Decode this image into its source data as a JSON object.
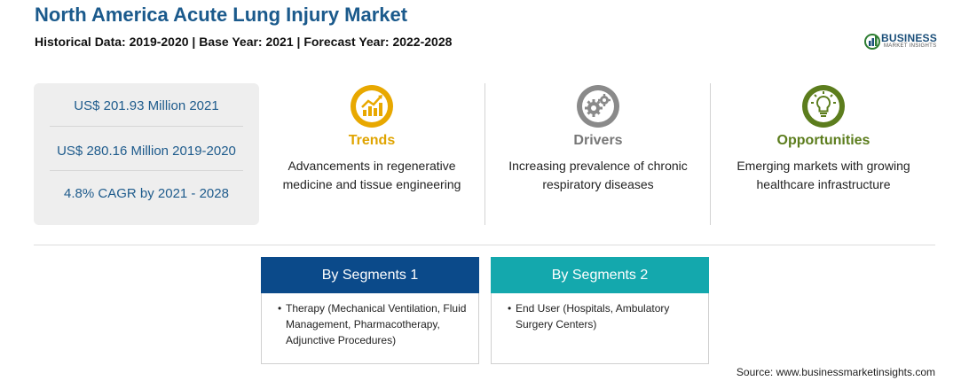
{
  "header": {
    "title": "North America Acute Lung Injury Market",
    "subtitle": "Historical Data: 2019-2020 | Base Year: 2021 | Forecast Year: 2022-2028"
  },
  "logo": {
    "word": "BUSINESS",
    "sub": "MARKET INSIGHTS"
  },
  "stats": [
    "US$ 201.93 Million 2021",
    "US$ 280.16 Million 2019-2020",
    "4.8% CAGR by 2021 - 2028"
  ],
  "columns": {
    "trends": {
      "heading": "Trends",
      "text": "Advancements in regenerative medicine and tissue engineering",
      "color": "#e0a400",
      "icon": "growth-chart-icon"
    },
    "drivers": {
      "heading": "Drivers",
      "text": "Increasing prevalence of chronic respiratory diseases",
      "color": "#777777",
      "icon": "gears-icon"
    },
    "opportunities": {
      "heading": "Opportunities",
      "text": "Emerging markets with growing healthcare infrastructure",
      "color": "#5c7d1d",
      "icon": "lightbulb-icon"
    }
  },
  "segments": [
    {
      "title": "By Segments 1",
      "bullet": "•",
      "item": "Therapy (Mechanical Ventilation, Fluid Management, Pharmacotherapy, Adjunctive Procedures)",
      "color": "#0b4a8a"
    },
    {
      "title": "By Segments 2",
      "bullet": "•",
      "item": "End User (Hospitals, Ambulatory Surgery Centers)",
      "color": "#14a8ad"
    }
  ],
  "source": "Source: www.businessmarketinsights.com"
}
